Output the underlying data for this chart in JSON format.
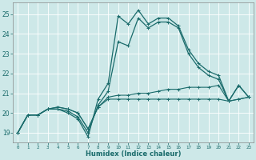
{
  "xlabel": "Humidex (Indice chaleur)",
  "bg_color": "#cde8e8",
  "grid_color": "#b8d8d8",
  "line_color": "#1a6b6b",
  "xlim": [
    -0.5,
    23.5
  ],
  "ylim": [
    18.5,
    25.6
  ],
  "yticks": [
    19,
    20,
    21,
    22,
    23,
    24,
    25
  ],
  "xticks": [
    0,
    1,
    2,
    3,
    4,
    5,
    6,
    7,
    8,
    9,
    10,
    11,
    12,
    13,
    14,
    15,
    16,
    17,
    18,
    19,
    20,
    21,
    22,
    23
  ],
  "series": [
    [
      19.0,
      19.9,
      19.9,
      20.2,
      20.2,
      20.0,
      19.7,
      18.8,
      20.7,
      21.5,
      24.9,
      24.5,
      25.2,
      24.5,
      24.8,
      24.8,
      24.4,
      23.2,
      22.5,
      22.1,
      21.9,
      20.6,
      21.4,
      20.8
    ],
    [
      19.0,
      19.9,
      19.9,
      20.2,
      20.2,
      20.1,
      19.8,
      19.0,
      20.4,
      21.1,
      23.6,
      23.4,
      24.8,
      24.3,
      24.6,
      24.6,
      24.3,
      23.0,
      22.3,
      21.9,
      21.7,
      20.6,
      21.4,
      20.8
    ],
    [
      19.0,
      19.9,
      19.9,
      20.2,
      20.3,
      20.2,
      20.0,
      19.2,
      20.3,
      20.8,
      20.9,
      20.9,
      21.0,
      21.0,
      21.1,
      21.2,
      21.2,
      21.3,
      21.3,
      21.3,
      21.4,
      20.6,
      20.7,
      20.8
    ],
    [
      19.0,
      19.9,
      19.9,
      20.2,
      20.3,
      20.2,
      20.0,
      19.2,
      20.3,
      20.7,
      20.7,
      20.7,
      20.7,
      20.7,
      20.7,
      20.7,
      20.7,
      20.7,
      20.7,
      20.7,
      20.7,
      20.6,
      20.7,
      20.8
    ]
  ]
}
